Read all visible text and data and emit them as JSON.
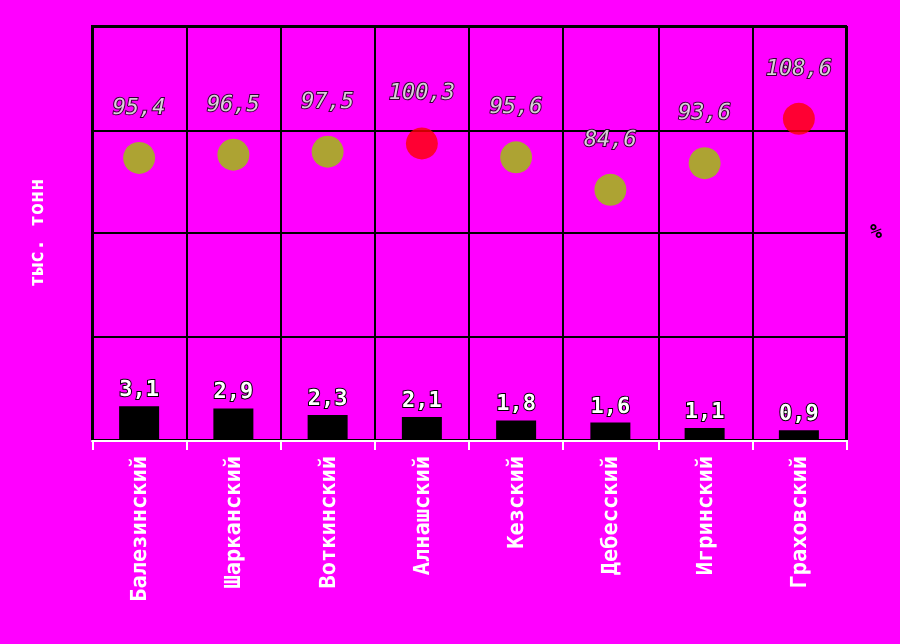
{
  "chart_data": {
    "type": "bar",
    "categories": [
      "Балезинский",
      "Шарканский",
      "Воткинский",
      "Алнашский",
      "Кезский",
      "Дебесский",
      "Игринский",
      "Граховский"
    ],
    "ylabel": "тыс. тонн",
    "y2label": "%",
    "series": [
      {
        "color": "#000000",
        "values": [
          3.1,
          2.9,
          2.3,
          2.1,
          1.8,
          1.6,
          1.1,
          0.9
        ],
        "value_labels": [
          "3,1",
          "2,9",
          "2,3",
          "2,1",
          "1,8",
          "1,6",
          "1,1",
          "0,9"
        ]
      },
      {
        "type": "scatter",
        "axis": "y2",
        "marker": "circle",
        "values": [
          95.4,
          96.5,
          97.5,
          100.3,
          95.6,
          84.6,
          93.6,
          108.6
        ],
        "value_labels": [
          "95,4",
          "96,5",
          "97,5",
          "100,3",
          "95,6",
          "84,6",
          "93,6",
          "108,6"
        ],
        "colors": [
          "#99cc00",
          "#99cc00",
          "#99cc00",
          "#ff0000",
          "#99cc00",
          "#99cc00",
          "#99cc00",
          "#ff0000"
        ]
      }
    ],
    "ylim": [
      0,
      38
    ],
    "y2lim": [
      0,
      140
    ],
    "grid": true,
    "tick_labels": "x"
  }
}
